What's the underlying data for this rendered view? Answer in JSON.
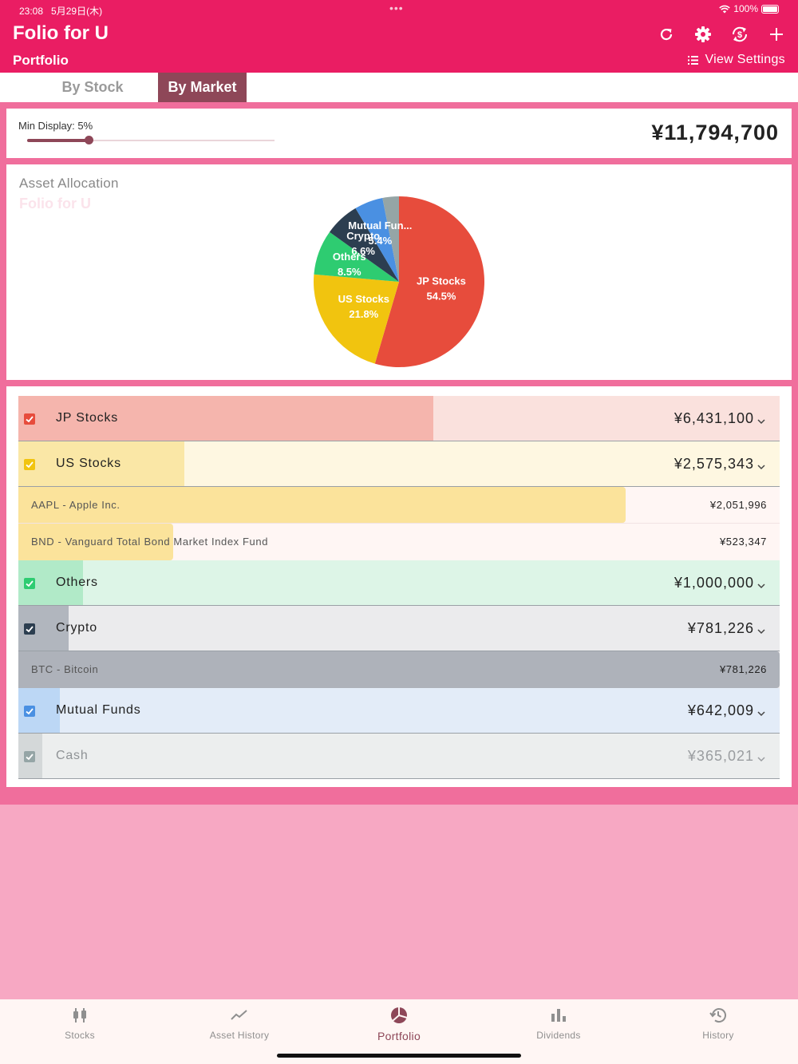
{
  "status": {
    "time": "23:08",
    "date": "5月29日(木)",
    "battery": "100%"
  },
  "header": {
    "title": "Folio for U",
    "subtitle": "Portfolio",
    "view_settings": "View Settings"
  },
  "toolbar_icons": [
    "refresh-icon",
    "gear-icon",
    "currency-sync-icon",
    "plus-icon"
  ],
  "tabs": [
    {
      "label": "By Stock",
      "active": false
    },
    {
      "label": "By Market",
      "active": true
    }
  ],
  "min_display": {
    "label": "Min Display:",
    "value": "5%",
    "level": 0.05
  },
  "total": "¥11,794,700",
  "chart": {
    "title": "Asset Allocation",
    "watermark": "Folio for U"
  },
  "chart_data": {
    "type": "pie",
    "title": "Asset Allocation",
    "slices": [
      {
        "label": "JP Stocks",
        "value": 54.5,
        "pct": "54.5%",
        "color": "#e74c3c"
      },
      {
        "label": "US Stocks",
        "value": 21.8,
        "pct": "21.8%",
        "color": "#f1c40f"
      },
      {
        "label": "Others",
        "value": 8.5,
        "pct": "8.5%",
        "color": "#2ecc71"
      },
      {
        "label": "Crypto",
        "value": 6.6,
        "pct": "6.6%",
        "color": "#2c3e50"
      },
      {
        "label": "Mutual Fun...",
        "value": 5.4,
        "pct": "5.4%",
        "color": "#4a90e2"
      },
      {
        "label": "",
        "value": 3.1,
        "pct": "",
        "color": "#95a5a6"
      }
    ]
  },
  "list": {
    "groups": [
      {
        "name": "JP Stocks",
        "amount": "¥6,431,100",
        "fraction": 0.545,
        "color": "#e74c3c",
        "bar": "#f5b5ad",
        "bg": "#fae1dd",
        "items": []
      },
      {
        "name": "US Stocks",
        "amount": "¥2,575,343",
        "fraction": 0.218,
        "color": "#f1c40f",
        "bar": "#fae7a6",
        "bg": "#fef7e1",
        "items": [
          {
            "name": "AAPL - Apple Inc.",
            "amount": "¥2,051,996",
            "fraction": 0.797
          },
          {
            "name": "BND - Vanguard Total Bond Market Index Fund",
            "amount": "¥523,347",
            "fraction": 0.203
          }
        ]
      },
      {
        "name": "Others",
        "amount": "¥1,000,000",
        "fraction": 0.085,
        "color": "#2ecc71",
        "bar": "#b1eac8",
        "bg": "#ddf5e7",
        "items": []
      },
      {
        "name": "Crypto",
        "amount": "¥781,226",
        "fraction": 0.066,
        "color": "#2c3e50",
        "bar": "#b1b6be",
        "bg": "#ebebed",
        "items": [
          {
            "name": "BTC - Bitcoin",
            "amount": "¥781,226",
            "fraction": 1.0
          }
        ]
      },
      {
        "name": "Mutual Funds",
        "amount": "¥642,009",
        "fraction": 0.054,
        "color": "#4a90e2",
        "bar": "#bcd7f5",
        "bg": "#e3ecf8",
        "items": []
      },
      {
        "name": "Cash",
        "amount": "¥365,021",
        "fraction": 0.031,
        "color": "#95a5a6",
        "bar": "#d4d8d9",
        "bg": "#eceeee",
        "items": [],
        "dim": true
      }
    ]
  },
  "bottom_tabs": [
    {
      "label": "Stocks",
      "icon": "candlestick-icon",
      "active": false
    },
    {
      "label": "Asset History",
      "icon": "trend-line-icon",
      "active": false
    },
    {
      "label": "Portfolio",
      "icon": "pie-chart-icon",
      "active": true
    },
    {
      "label": "Dividends",
      "icon": "bar-chart-icon",
      "active": false
    },
    {
      "label": "History",
      "icon": "history-icon",
      "active": false
    }
  ],
  "colors": {
    "primary": "#ea1d63",
    "accent": "#8e4758",
    "background": "#f7a8c3"
  }
}
